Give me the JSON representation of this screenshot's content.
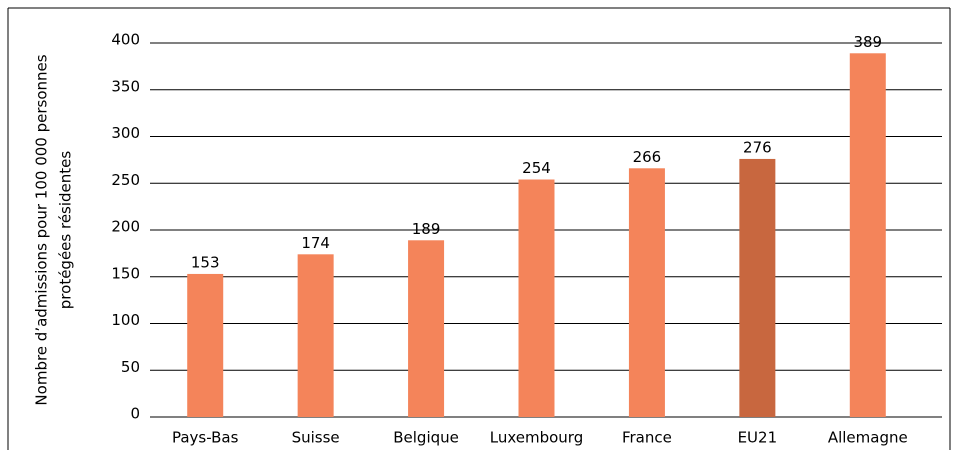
{
  "chart_data": {
    "type": "bar",
    "y_label": [
      "Nombre d’admissions pour 100 000 personnes",
      "protégées résidentes"
    ],
    "categories": [
      "Pays-Bas",
      "Suisse",
      "Belgique",
      "Luxembourg",
      "France",
      "EU21",
      "Allemagne"
    ],
    "values": [
      153,
      174,
      189,
      254,
      266,
      276,
      389
    ],
    "colors": [
      "#f4845a",
      "#f4845a",
      "#f4845a",
      "#f4845a",
      "#f4845a",
      "#c8673f",
      "#f4845a"
    ],
    "ylim": [
      0,
      400
    ],
    "yticks": [
      0,
      50,
      100,
      150,
      200,
      250,
      300,
      350,
      400
    ],
    "grid": true
  }
}
